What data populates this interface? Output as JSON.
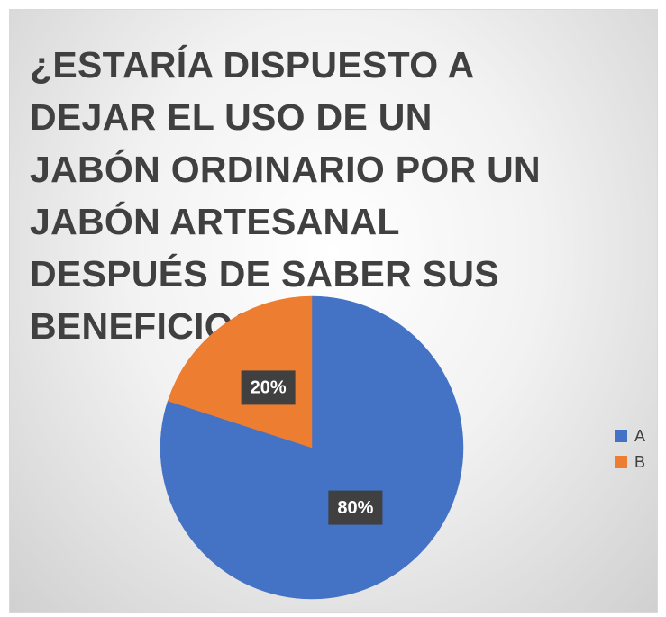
{
  "chart_data": {
    "type": "pie",
    "title": "¿ESTARÍA DISPUESTO A DEJAR EL USO DE UN JABÓN ORDINARIO POR UN JABÓN ARTESANAL DESPUÉS DE SABER SUS BENEFICIOS?",
    "categories": [
      "A",
      "B"
    ],
    "values": [
      80,
      20
    ],
    "value_labels": [
      "80%",
      "20%"
    ],
    "colors": [
      "#4472c4",
      "#ed7d31"
    ],
    "legend": "right"
  }
}
